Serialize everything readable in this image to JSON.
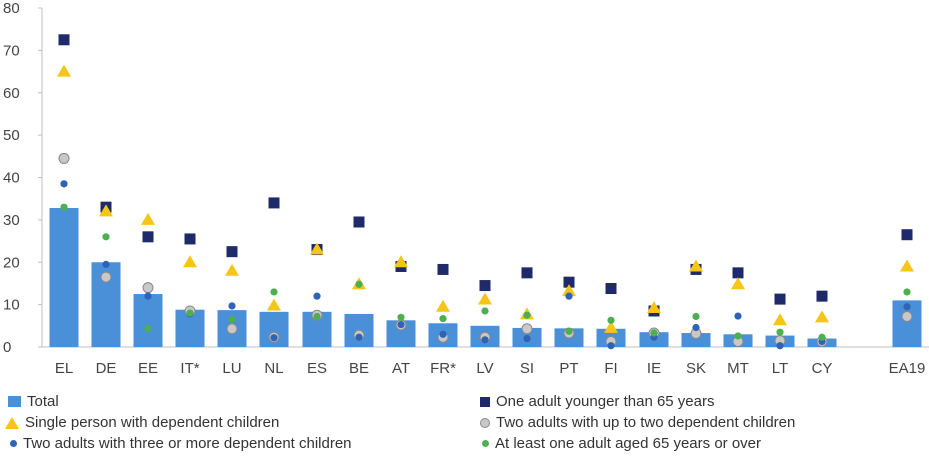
{
  "chart_data": {
    "type": "bar",
    "title": "",
    "xlabel": "",
    "ylabel": "",
    "ylim": [
      0,
      80
    ],
    "yticks": [
      0,
      10,
      20,
      30,
      40,
      50,
      60,
      70,
      80
    ],
    "grid": false,
    "legend_position": "bottom",
    "categories": [
      "EL",
      "DE",
      "EE",
      "IT*",
      "LU",
      "NL",
      "ES",
      "BE",
      "AT",
      "FR*",
      "LV",
      "SI",
      "PT",
      "FI",
      "IE",
      "SK",
      "MT",
      "LT",
      "CY",
      "EA19"
    ],
    "series": [
      {
        "name": "Total",
        "kind": "bar",
        "color": "#4a90d9",
        "values": [
          32.8,
          20,
          12.5,
          8.8,
          8.7,
          8.3,
          8.3,
          7.8,
          6.3,
          5.6,
          5,
          4.5,
          4.4,
          4.3,
          3.5,
          3.3,
          3,
          2.7,
          2,
          11
        ]
      },
      {
        "name": "One adult younger than 65 years",
        "kind": "square",
        "color": "#1f2a6b",
        "values": [
          72.5,
          33,
          26,
          25.5,
          22.5,
          34,
          23,
          29.5,
          19,
          18.3,
          14.5,
          17.5,
          15.3,
          13.8,
          8.5,
          18.3,
          17.5,
          11.3,
          12,
          26.5
        ]
      },
      {
        "name": "Single person with dependent children",
        "kind": "triangle",
        "color": "#f5c518",
        "values": [
          65,
          32,
          30,
          20,
          18,
          9.8,
          23,
          14.8,
          20,
          9.5,
          11.2,
          7.7,
          13.2,
          4.5,
          9.2,
          19,
          14.8,
          6.3,
          7,
          19
        ]
      },
      {
        "name": "Two adults with up to two dependent children",
        "kind": "circle-grey",
        "color": "#c8c8c8",
        "values": [
          44.5,
          16.5,
          14,
          8.5,
          4.3,
          2.3,
          7.5,
          2.8,
          5.2,
          2.3,
          2.3,
          4.3,
          3.3,
          1.3,
          3.3,
          3.2,
          1.3,
          1.5,
          1.3,
          7.2
        ]
      },
      {
        "name": "Two adults with three or more dependent children",
        "kind": "circle-blue",
        "color": "#2e64b5",
        "values": [
          38.5,
          19.5,
          12,
          7.8,
          9.7,
          2.2,
          12,
          2.3,
          5.3,
          3,
          1.7,
          2,
          12,
          0.3,
          2.3,
          4.6,
          7.3,
          0.3,
          1.3,
          9.5
        ]
      },
      {
        "name": "At least one adult aged 65 years or over",
        "kind": "circle-green",
        "color": "#4caf50",
        "values": [
          33,
          26,
          4.3,
          8,
          6.5,
          13,
          7.2,
          14.8,
          7,
          6.7,
          8.5,
          7.5,
          3.7,
          6.3,
          3.3,
          7.2,
          2.6,
          3.5,
          2.3,
          13
        ]
      }
    ]
  },
  "legend": {
    "total": "Total",
    "one_adult": "One adult younger than 65 years",
    "single_person": "Single person with dependent children",
    "two_adults_two": "Two adults with up to two dependent children",
    "two_adults_three": "Two adults with three or more dependent children",
    "elderly": "At least one adult aged 65 years or over"
  }
}
